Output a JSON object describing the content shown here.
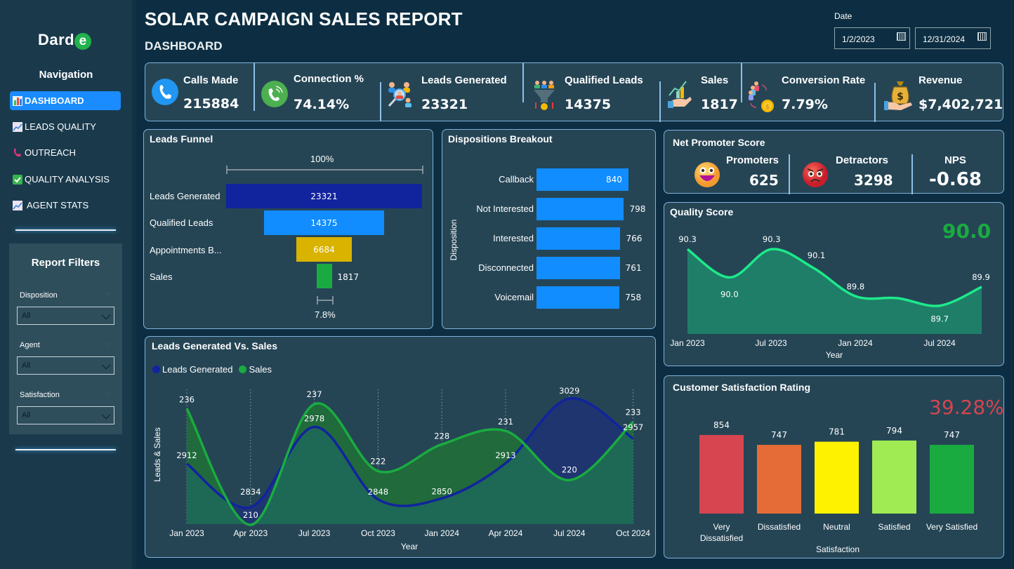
{
  "sidebar": {
    "logo_text": "Dard",
    "logo_accent": "e",
    "nav_title": "Navigation",
    "items": [
      {
        "label": "DASHBOARD",
        "icon": "bar-chart-icon",
        "active": true
      },
      {
        "label": "LEADS QUALITY",
        "icon": "trend-chart-icon",
        "active": false
      },
      {
        "label": "OUTREACH",
        "icon": "phone-icon",
        "active": false
      },
      {
        "label": "QUALITY ANALYSIS",
        "icon": "check-box-icon",
        "active": false
      },
      {
        "label": "AGENT STATS",
        "icon": "trend-chart-icon",
        "active": false
      }
    ],
    "filters": {
      "title": "Report Filters",
      "items": [
        {
          "label": "Disposition",
          "value": "All"
        },
        {
          "label": "Agent",
          "value": "All"
        },
        {
          "label": "Satisfaction",
          "value": "All"
        }
      ]
    }
  },
  "header": {
    "title": "SOLAR CAMPAIGN SALES REPORT",
    "subtitle": "DASHBOARD",
    "date_label": "Date",
    "date_start": "1/2/2023",
    "date_end": "12/31/2024"
  },
  "kpis": [
    {
      "label": "Calls Made",
      "value": "215884",
      "icon": "phone-call-icon"
    },
    {
      "label": "Connection %",
      "value": "74.14%",
      "icon": "phone-ringing-icon"
    },
    {
      "label": "Leads Generated",
      "value": "23321",
      "icon": "people-search-icon"
    },
    {
      "label": "Qualified Leads",
      "value": "14375",
      "icon": "funnel-people-icon"
    },
    {
      "label": "Sales",
      "value": "1817",
      "icon": "growth-hand-icon"
    },
    {
      "label": "Conversion Rate",
      "value": "7.79%",
      "icon": "people-coin-icon"
    },
    {
      "label": "Revenue",
      "value": "$7,402,721",
      "icon": "money-bag-icon"
    }
  ],
  "funnel": {
    "title": "Leads Funnel",
    "top_pct": "100%",
    "bottom_pct": "7.8%",
    "stages": [
      {
        "label": "Leads Generated",
        "value": 23321,
        "color": "#12239e"
      },
      {
        "label": "Qualified Leads",
        "value": 14375,
        "color": "#118dff"
      },
      {
        "label": "Appointments B...",
        "value": 6684,
        "color": "#d9b300"
      },
      {
        "label": "Sales",
        "value": 1817,
        "color": "#1aab40"
      }
    ]
  },
  "dispositions": {
    "title": "Dispositions Breakout",
    "axis_label": "Disposition",
    "items": [
      {
        "label": "Callback",
        "value": 840
      },
      {
        "label": "Not Interested",
        "value": 798
      },
      {
        "label": "Interested",
        "value": 766
      },
      {
        "label": "Disconnected",
        "value": 761
      },
      {
        "label": "Voicemail",
        "value": 758
      }
    ],
    "color": "#118dff"
  },
  "nps": {
    "title": "Net Promoter Score",
    "promoters_label": "Promoters",
    "promoters_value": "625",
    "detractors_label": "Detractors",
    "detractors_value": "3298",
    "nps_label": "NPS",
    "nps_value": "-0.68"
  },
  "quality": {
    "title": "Quality Score",
    "big_value": "90.0",
    "big_color": "#1aab40"
  },
  "satisfaction": {
    "title": "Customer Satisfaction Rating",
    "big_value": "39.28%",
    "big_color": "#d64550"
  },
  "leads_sales": {
    "title": "Leads Generated Vs. Sales",
    "legend": [
      {
        "label": "Leads Generated",
        "color": "#12239e"
      },
      {
        "label": "Sales",
        "color": "#1aab40"
      }
    ]
  },
  "chart_data": [
    {
      "type": "bar",
      "title": "Leads Funnel",
      "categories": [
        "Leads Generated",
        "Qualified Leads",
        "Appointments B...",
        "Sales"
      ],
      "values": [
        23321,
        14375,
        6684,
        1817
      ]
    },
    {
      "type": "bar",
      "title": "Dispositions Breakout",
      "orientation": "horizontal",
      "ylabel": "Disposition",
      "categories": [
        "Callback",
        "Not Interested",
        "Interested",
        "Disconnected",
        "Voicemail"
      ],
      "values": [
        840,
        798,
        766,
        761,
        758
      ]
    },
    {
      "type": "area",
      "title": "Quality Score",
      "xlabel": "Year",
      "x_ticks": [
        "Jan 2023",
        "Jul 2023",
        "Jan 2024",
        "Jul 2024"
      ],
      "x": [
        "Jan 2023",
        "Apr 2023",
        "Jul 2023",
        "Oct 2023",
        "Jan 2024",
        "Apr 2024",
        "Jul 2024",
        "Oct 2024"
      ],
      "values": [
        90.3,
        90.0,
        90.3,
        90.1,
        89.8,
        89.78,
        89.7,
        89.9
      ],
      "labels": [
        "90.3",
        "90.0",
        "90.3",
        "90.1",
        "89.8",
        "",
        "89.7",
        "89.9"
      ],
      "ylim": [
        89.4,
        90.45
      ],
      "color": "#1de98b"
    },
    {
      "type": "bar",
      "title": "Customer Satisfaction Rating",
      "xlabel": "Satisfaction",
      "categories": [
        "Very Dissatisfied",
        "Dissatisfied",
        "Neutral",
        "Satisfied",
        "Very Satisfied"
      ],
      "values": [
        854,
        747,
        781,
        794,
        747
      ],
      "colors": [
        "#d64550",
        "#e66c37",
        "#fff200",
        "#a0eb53",
        "#1aab40"
      ],
      "ylim": [
        0,
        854
      ]
    },
    {
      "type": "area",
      "title": "Leads Generated Vs. Sales",
      "xlabel": "Year",
      "ylabel": "Leads & Sales",
      "x": [
        "Jan 2023",
        "Apr 2023",
        "Jul 2023",
        "Oct 2023",
        "Jan 2024",
        "Apr 2024",
        "Jul 2024",
        "Oct 2024"
      ],
      "series": [
        {
          "name": "Leads Generated",
          "values": [
            2912,
            2834,
            2978,
            2848,
            2850,
            2913,
            3029,
            2957
          ],
          "color": "#12239e"
        },
        {
          "name": "Sales",
          "values": [
            236,
            210,
            237,
            222,
            228,
            231,
            220,
            233
          ],
          "color": "#1aab40"
        }
      ]
    }
  ]
}
